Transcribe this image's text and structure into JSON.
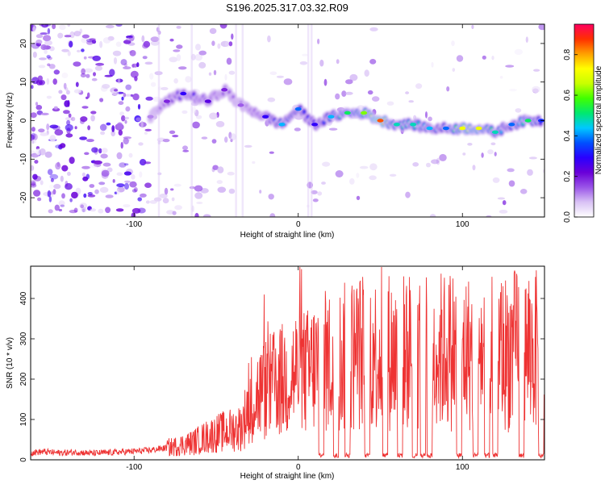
{
  "figure": {
    "title": "S196.2025.317.03.32.R09"
  },
  "chart_data": [
    {
      "type": "heatmap",
      "xlabel": "Height of straight line (km)",
      "ylabel": "Frequency (Hz)",
      "xlim": [
        -163,
        150
      ],
      "ylim": [
        -25,
        25
      ],
      "xticks": [
        -100,
        0,
        100
      ],
      "yticks": [
        -20,
        -10,
        0,
        10,
        20
      ],
      "colorbar": {
        "label": "Normalized spectral amplitude",
        "range": [
          0,
          0.95
        ],
        "ticks": [
          0.0,
          0.2,
          0.4,
          0.6,
          0.8
        ],
        "colormap": [
          "#ffffff",
          "#d9c2f5",
          "#9a55e8",
          "#6a00d8",
          "#2a00ff",
          "#0050ff",
          "#00c8ff",
          "#00e870",
          "#40ff00",
          "#c8ff00",
          "#ffff00",
          "#ffa000",
          "#ff3000",
          "#ff0060"
        ]
      },
      "ridge": [
        {
          "x": -90,
          "y": 1,
          "amp": 0.12
        },
        {
          "x": -80,
          "y": 5,
          "amp": 0.2
        },
        {
          "x": -70,
          "y": 7,
          "amp": 0.3
        },
        {
          "x": -55,
          "y": 5,
          "amp": 0.25
        },
        {
          "x": -45,
          "y": 8,
          "amp": 0.2
        },
        {
          "x": -35,
          "y": 4,
          "amp": 0.15
        },
        {
          "x": -20,
          "y": 1,
          "amp": 0.3
        },
        {
          "x": -10,
          "y": -1,
          "amp": 0.45
        },
        {
          "x": 0,
          "y": 3,
          "amp": 0.4
        },
        {
          "x": 10,
          "y": -1,
          "amp": 0.3
        },
        {
          "x": 20,
          "y": 1,
          "amp": 0.45
        },
        {
          "x": 30,
          "y": 2,
          "amp": 0.55
        },
        {
          "x": 40,
          "y": 2,
          "amp": 0.65
        },
        {
          "x": 50,
          "y": 0,
          "amp": 0.9
        },
        {
          "x": 60,
          "y": -1,
          "amp": 0.5
        },
        {
          "x": 70,
          "y": -1,
          "amp": 0.5
        },
        {
          "x": 80,
          "y": -2,
          "amp": 0.45
        },
        {
          "x": 90,
          "y": -2,
          "amp": 0.4
        },
        {
          "x": 100,
          "y": -2,
          "amp": 0.75
        },
        {
          "x": 110,
          "y": -2,
          "amp": 0.75
        },
        {
          "x": 120,
          "y": -3,
          "amp": 0.5
        },
        {
          "x": 130,
          "y": -1,
          "amp": 0.4
        },
        {
          "x": 140,
          "y": 0,
          "amp": 0.55
        },
        {
          "x": 148,
          "y": 0,
          "amp": 0.35
        }
      ]
    },
    {
      "type": "line",
      "xlabel": "Height of straight line (km)",
      "ylabel": "SNR (10 * v/v)",
      "xlim": [
        -163,
        150
      ],
      "ylim": [
        0,
        480
      ],
      "xticks": [
        -100,
        0,
        100
      ],
      "yticks": [
        0,
        100,
        200,
        300,
        400
      ],
      "grid": false,
      "series": [
        {
          "color": "#ee3333",
          "x": [
            -163,
            -155,
            -145,
            -135,
            -125,
            -115,
            -105,
            -95,
            -88,
            -80,
            -75,
            -70,
            -65,
            -60,
            -55,
            -50,
            -45,
            -40,
            -35,
            -32,
            -30,
            -25,
            -20,
            -15,
            -10,
            -5,
            0,
            5,
            10,
            15,
            20,
            25,
            30,
            35,
            40,
            45,
            50,
            55,
            60,
            65,
            70,
            75,
            80,
            85,
            90,
            95,
            100,
            105,
            110,
            115,
            120,
            125,
            130,
            135,
            140,
            145,
            150
          ],
          "values": [
            18,
            20,
            17,
            19,
            16,
            18,
            20,
            22,
            25,
            30,
            33,
            38,
            42,
            50,
            58,
            65,
            70,
            75,
            80,
            110,
            150,
            160,
            175,
            185,
            195,
            210,
            220,
            215,
            230,
            240,
            245,
            250,
            255,
            265,
            270,
            265,
            260,
            270,
            262,
            268,
            272,
            270,
            265,
            268,
            270,
            275,
            268,
            265,
            270,
            272,
            268,
            265,
            270,
            275,
            268,
            270,
            260
          ],
          "dips_x": [
            14,
            23,
            30,
            42,
            53,
            62,
            71,
            76,
            80,
            98,
            108,
            115,
            120,
            136,
            148
          ]
        }
      ]
    }
  ]
}
